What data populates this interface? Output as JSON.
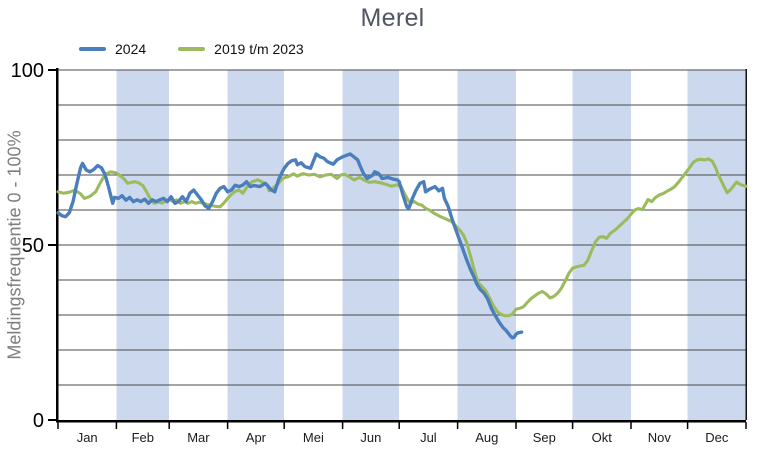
{
  "chart_data": {
    "type": "line",
    "title": "Merel",
    "ylabel": "Meldingsfrequentie 0 - 100%",
    "ylim": [
      0,
      100
    ],
    "y_ticks": [
      0,
      50,
      100
    ],
    "grid_step": 10,
    "x_unit": "day-of-year",
    "month_labels": [
      "Jan",
      "Feb",
      "Mar",
      "Apr",
      "Mei",
      "Jun",
      "Jul",
      "Aug",
      "Sep",
      "Okt",
      "Nov",
      "Dec"
    ],
    "shaded_month_labels": [
      "Feb",
      "Apr",
      "Jun",
      "Aug",
      "Okt",
      "Dec"
    ],
    "plot_band_color": "#ccd8ee",
    "grid_color": "#4a4a4a",
    "axis_color": "#000000",
    "title_color": "#515761",
    "legend_position": "top-left",
    "series": [
      {
        "name": "2024",
        "color": "#4a7ebc",
        "points": [
          [
            0,
            59.2
          ],
          [
            2,
            58.4
          ],
          [
            4,
            58.1
          ],
          [
            6,
            59.2
          ],
          [
            8,
            62.5
          ],
          [
            10,
            67.5
          ],
          [
            12,
            72.1
          ],
          [
            13,
            73.3
          ],
          [
            15,
            71.4
          ],
          [
            17,
            70.9
          ],
          [
            19,
            71.6
          ],
          [
            21,
            72.7
          ],
          [
            23,
            72.1
          ],
          [
            25,
            70.1
          ],
          [
            27,
            66.2
          ],
          [
            29,
            61.9
          ],
          [
            30,
            63.6
          ],
          [
            32,
            63.3
          ],
          [
            34,
            64.1
          ],
          [
            36,
            62.8
          ],
          [
            38,
            63.6
          ],
          [
            40,
            62.4
          ],
          [
            42,
            62.9
          ],
          [
            44,
            62.4
          ],
          [
            46,
            63.1
          ],
          [
            48,
            61.9
          ],
          [
            50,
            62.9
          ],
          [
            52,
            62.4
          ],
          [
            54,
            62.9
          ],
          [
            56,
            63.3
          ],
          [
            58,
            62.4
          ],
          [
            60,
            63.8
          ],
          [
            62,
            61.9
          ],
          [
            64,
            62.4
          ],
          [
            66,
            63.8
          ],
          [
            68,
            62.4
          ],
          [
            70,
            64.8
          ],
          [
            72,
            65.7
          ],
          [
            74,
            64.3
          ],
          [
            76,
            62.9
          ],
          [
            78,
            61.2
          ],
          [
            80,
            60.5
          ],
          [
            82,
            62.4
          ],
          [
            84,
            64.8
          ],
          [
            86,
            66.2
          ],
          [
            88,
            66.7
          ],
          [
            90,
            65.2
          ],
          [
            92,
            65.7
          ],
          [
            94,
            67.1
          ],
          [
            96,
            66.7
          ],
          [
            98,
            67.1
          ],
          [
            100,
            68.1
          ],
          [
            102,
            66.7
          ],
          [
            104,
            67.0
          ],
          [
            107,
            66.7
          ],
          [
            110,
            67.6
          ],
          [
            111,
            67.1
          ],
          [
            113,
            65.8
          ],
          [
            115,
            65.2
          ],
          [
            117,
            68.6
          ],
          [
            119,
            70.9
          ],
          [
            120,
            71.9
          ],
          [
            122,
            73.3
          ],
          [
            124,
            74.1
          ],
          [
            126,
            74.3
          ],
          [
            127,
            72.9
          ],
          [
            129,
            73.5
          ],
          [
            131,
            72.4
          ],
          [
            134,
            71.9
          ],
          [
            135,
            73.3
          ],
          [
            137,
            76.0
          ],
          [
            139,
            75.2
          ],
          [
            141,
            74.8
          ],
          [
            143,
            73.8
          ],
          [
            146,
            73.1
          ],
          [
            148,
            74.3
          ],
          [
            151,
            75.2
          ],
          [
            155,
            76.0
          ],
          [
            157,
            75.2
          ],
          [
            159,
            74.3
          ],
          [
            160,
            72.9
          ],
          [
            162,
            70.5
          ],
          [
            164,
            69.0
          ],
          [
            167,
            70.0
          ],
          [
            168,
            70.9
          ],
          [
            170,
            70.5
          ],
          [
            172,
            69.0
          ],
          [
            175,
            69.3
          ],
          [
            178,
            68.8
          ],
          [
            180,
            68.6
          ],
          [
            181,
            68.1
          ],
          [
            183,
            64.3
          ],
          [
            185,
            61.0
          ],
          [
            186,
            60.3
          ],
          [
            188,
            63.3
          ],
          [
            190,
            65.7
          ],
          [
            192,
            67.6
          ],
          [
            194,
            68.1
          ],
          [
            195,
            65.2
          ],
          [
            197,
            65.9
          ],
          [
            200,
            66.7
          ],
          [
            202,
            65.5
          ],
          [
            204,
            66.2
          ],
          [
            205,
            63.3
          ],
          [
            207,
            61.0
          ],
          [
            209,
            57.5
          ],
          [
            211,
            54.5
          ],
          [
            213,
            51.5
          ],
          [
            215,
            48.5
          ],
          [
            217,
            45.5
          ],
          [
            219,
            42.8
          ],
          [
            221,
            40.5
          ],
          [
            222,
            39.0
          ],
          [
            224,
            37.3
          ],
          [
            226,
            36.3
          ],
          [
            228,
            34.5
          ],
          [
            230,
            31.8
          ],
          [
            232,
            29.8
          ],
          [
            234,
            28.0
          ],
          [
            236,
            26.5
          ],
          [
            238,
            25.4
          ],
          [
            240,
            24.0
          ],
          [
            241,
            23.5
          ],
          [
            242,
            23.7
          ],
          [
            243,
            24.5
          ],
          [
            244,
            24.9
          ],
          [
            246,
            25.1
          ]
        ]
      },
      {
        "name": "2019 t/m 2023",
        "color": "#9cbb5c",
        "points": [
          [
            0,
            65.2
          ],
          [
            3,
            64.8
          ],
          [
            6,
            65.1
          ],
          [
            9,
            65.7
          ],
          [
            12,
            64.6
          ],
          [
            14,
            63.3
          ],
          [
            17,
            63.9
          ],
          [
            20,
            65.2
          ],
          [
            22,
            67.3
          ],
          [
            25,
            70.2
          ],
          [
            28,
            70.9
          ],
          [
            31,
            70.6
          ],
          [
            33,
            69.8
          ],
          [
            35,
            68.9
          ],
          [
            37,
            67.6
          ],
          [
            39,
            67.9
          ],
          [
            41,
            68.1
          ],
          [
            43,
            67.7
          ],
          [
            45,
            67.0
          ],
          [
            47,
            65.2
          ],
          [
            49,
            63.1
          ],
          [
            51,
            61.9
          ],
          [
            53,
            62.3
          ],
          [
            55,
            62.0
          ],
          [
            57,
            62.4
          ],
          [
            59,
            63.1
          ],
          [
            61,
            62.4
          ],
          [
            63,
            62.9
          ],
          [
            65,
            61.9
          ],
          [
            67,
            62.4
          ],
          [
            69,
            61.9
          ],
          [
            71,
            62.4
          ],
          [
            73,
            61.9
          ],
          [
            75,
            62.2
          ],
          [
            77,
            61.9
          ],
          [
            79,
            61.6
          ],
          [
            81,
            61.3
          ],
          [
            84,
            61.0
          ],
          [
            86,
            60.9
          ],
          [
            88,
            62.0
          ],
          [
            90,
            63.3
          ],
          [
            92,
            64.5
          ],
          [
            94,
            65.3
          ],
          [
            96,
            65.7
          ],
          [
            98,
            64.8
          ],
          [
            101,
            67.1
          ],
          [
            103,
            68.1
          ],
          [
            106,
            68.6
          ],
          [
            108,
            68.1
          ],
          [
            111,
            67.1
          ],
          [
            112,
            65.5
          ],
          [
            114,
            66.2
          ],
          [
            117,
            67.6
          ],
          [
            119,
            69.0
          ],
          [
            122,
            69.5
          ],
          [
            125,
            70.3
          ],
          [
            127,
            69.7
          ],
          [
            130,
            70.4
          ],
          [
            133,
            70.0
          ],
          [
            136,
            70.2
          ],
          [
            139,
            69.5
          ],
          [
            142,
            70.0
          ],
          [
            145,
            70.2
          ],
          [
            148,
            69.0
          ],
          [
            150,
            70.0
          ],
          [
            152,
            70.2
          ],
          [
            155,
            69.3
          ],
          [
            157,
            68.6
          ],
          [
            160,
            69.3
          ],
          [
            163,
            68.4
          ],
          [
            165,
            67.9
          ],
          [
            168,
            68.1
          ],
          [
            171,
            67.8
          ],
          [
            174,
            67.3
          ],
          [
            177,
            66.8
          ],
          [
            180,
            67.2
          ],
          [
            182,
            66.7
          ],
          [
            184,
            64.5
          ],
          [
            186,
            62.6
          ],
          [
            187,
            61.9
          ],
          [
            189,
            62.4
          ],
          [
            191,
            61.7
          ],
          [
            193,
            61.4
          ],
          [
            195,
            60.5
          ],
          [
            197,
            60.0
          ],
          [
            200,
            58.9
          ],
          [
            203,
            58.1
          ],
          [
            206,
            57.4
          ],
          [
            209,
            56.6
          ],
          [
            211,
            55.5
          ],
          [
            213,
            54.3
          ],
          [
            215,
            52.9
          ],
          [
            217,
            50.5
          ],
          [
            219,
            46.5
          ],
          [
            221,
            42.5
          ],
          [
            223,
            39.2
          ],
          [
            225,
            38.1
          ],
          [
            227,
            36.9
          ],
          [
            229,
            34.8
          ],
          [
            231,
            32.6
          ],
          [
            233,
            31.0
          ],
          [
            235,
            30.2
          ],
          [
            237,
            29.8
          ],
          [
            239,
            29.8
          ],
          [
            241,
            30.2
          ],
          [
            243,
            31.7
          ],
          [
            245,
            31.9
          ],
          [
            247,
            32.4
          ],
          [
            249,
            33.6
          ],
          [
            251,
            34.7
          ],
          [
            253,
            35.5
          ],
          [
            255,
            36.3
          ],
          [
            257,
            36.7
          ],
          [
            259,
            36.0
          ],
          [
            261,
            34.9
          ],
          [
            263,
            35.3
          ],
          [
            265,
            36.2
          ],
          [
            267,
            37.6
          ],
          [
            269,
            39.6
          ],
          [
            271,
            41.9
          ],
          [
            273,
            43.4
          ],
          [
            276,
            43.9
          ],
          [
            279,
            44.2
          ],
          [
            281,
            45.6
          ],
          [
            283,
            48.2
          ],
          [
            285,
            50.8
          ],
          [
            287,
            52.2
          ],
          [
            289,
            52.4
          ],
          [
            291,
            51.9
          ],
          [
            293,
            53.3
          ],
          [
            296,
            54.5
          ],
          [
            299,
            56.0
          ],
          [
            302,
            57.5
          ],
          [
            304,
            58.8
          ],
          [
            306,
            60.0
          ],
          [
            308,
            60.4
          ],
          [
            310,
            60.1
          ],
          [
            312,
            62.0
          ],
          [
            313,
            63.0
          ],
          [
            315,
            62.4
          ],
          [
            317,
            63.6
          ],
          [
            319,
            64.3
          ],
          [
            321,
            64.7
          ],
          [
            323,
            65.3
          ],
          [
            325,
            65.9
          ],
          [
            327,
            66.6
          ],
          [
            329,
            67.8
          ],
          [
            331,
            69.2
          ],
          [
            333,
            70.6
          ],
          [
            335,
            72.1
          ],
          [
            337,
            73.6
          ],
          [
            339,
            74.3
          ],
          [
            341,
            74.5
          ],
          [
            343,
            74.3
          ],
          [
            345,
            74.6
          ],
          [
            347,
            74.0
          ],
          [
            349,
            72.0
          ],
          [
            350,
            70.5
          ],
          [
            352,
            68.2
          ],
          [
            354,
            66.0
          ],
          [
            355,
            64.9
          ],
          [
            357,
            65.9
          ],
          [
            359,
            67.3
          ],
          [
            360,
            68.0
          ],
          [
            362,
            67.3
          ],
          [
            364,
            66.9
          ],
          [
            365,
            66.8
          ]
        ]
      }
    ]
  }
}
